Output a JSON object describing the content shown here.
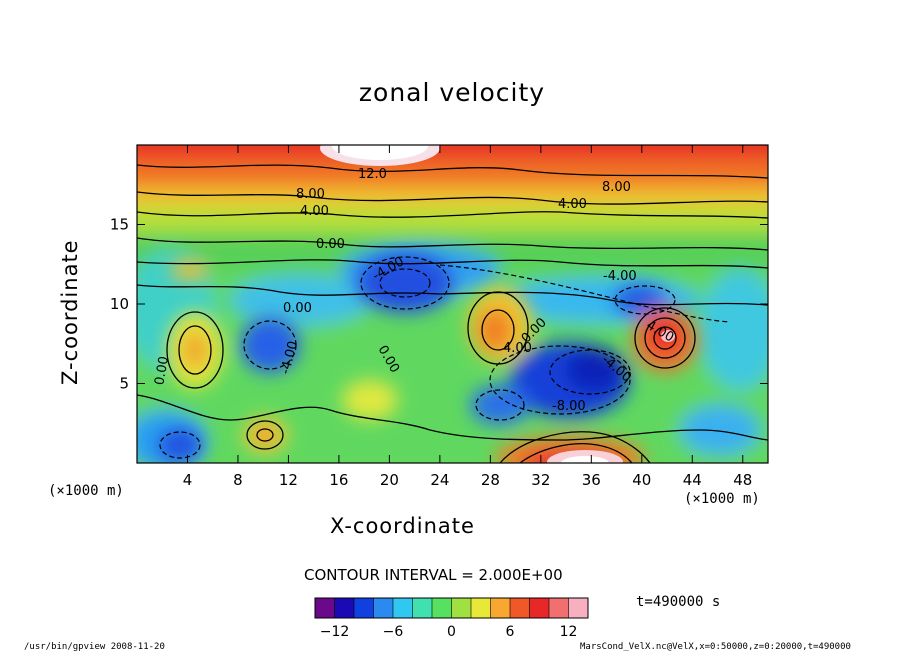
{
  "chart_data": {
    "type": "heatmap",
    "title": "zonal velocity",
    "xlabel": "X-coordinate",
    "ylabel": "Z-coordinate",
    "x_unit_label_left": "(×1000 m)",
    "x_unit_label_right": "(×1000 m)",
    "xlim": [
      0,
      50
    ],
    "ylim": [
      0,
      20
    ],
    "x_ticks": [
      4,
      8,
      12,
      16,
      20,
      24,
      28,
      32,
      36,
      40,
      44,
      48
    ],
    "y_ticks": [
      5,
      10,
      15
    ],
    "contour_interval_text": "CONTOUR INTERVAL = 2.000E+00",
    "contour_labels": [
      "12.0",
      "8.00",
      "8.00",
      "4.00",
      "4.00",
      "4.00",
      "0.00",
      "0.00",
      "0.00",
      "0.00",
      "0.00",
      "-4.00",
      "-4.00",
      "-4.00",
      "-4.00",
      "-8.00",
      "4.00"
    ],
    "colorbar": {
      "range": [
        -14,
        14
      ],
      "ticks": [
        -12,
        -6,
        0,
        6,
        12
      ],
      "colors": [
        "#6a0a8a",
        "#1a0ab4",
        "#1040e0",
        "#2a8af0",
        "#30c8f0",
        "#40e0b0",
        "#58e060",
        "#a0e040",
        "#e8e838",
        "#f8a830",
        "#f05828",
        "#e82828",
        "#f07070",
        "#f8b0c0"
      ]
    },
    "features": [
      {
        "x": 22,
        "z": 17.6,
        "value": 12,
        "label": "warm top band"
      },
      {
        "x": 34,
        "z": 1.0,
        "value": 14,
        "label": "bottom jet"
      },
      {
        "x": 29,
        "z": 8.0,
        "value": 8,
        "label": "yellow-orange cell"
      },
      {
        "x": 41.5,
        "z": 8.0,
        "value": 12,
        "label": "red cell"
      },
      {
        "x": 35,
        "z": 5.5,
        "value": -10,
        "label": "deep blue cell"
      },
      {
        "x": 20.5,
        "z": 11.0,
        "value": -10,
        "label": "blue cell"
      },
      {
        "x": 5,
        "z": 7.0,
        "value": 6,
        "label": "left yellow cell"
      },
      {
        "x": 10,
        "z": 1.8,
        "value": 8,
        "label": "small orange cell"
      },
      {
        "x": 10,
        "z": 7.0,
        "value": -6,
        "label": "left blue cell"
      }
    ]
  },
  "annotations": {
    "time": "t=490000 s",
    "footer_left": "/usr/bin/gpview  2008-11-20",
    "footer_right": "MarsCond_VelX.nc@VelX,x=0:50000,z=0:20000,t=490000"
  }
}
